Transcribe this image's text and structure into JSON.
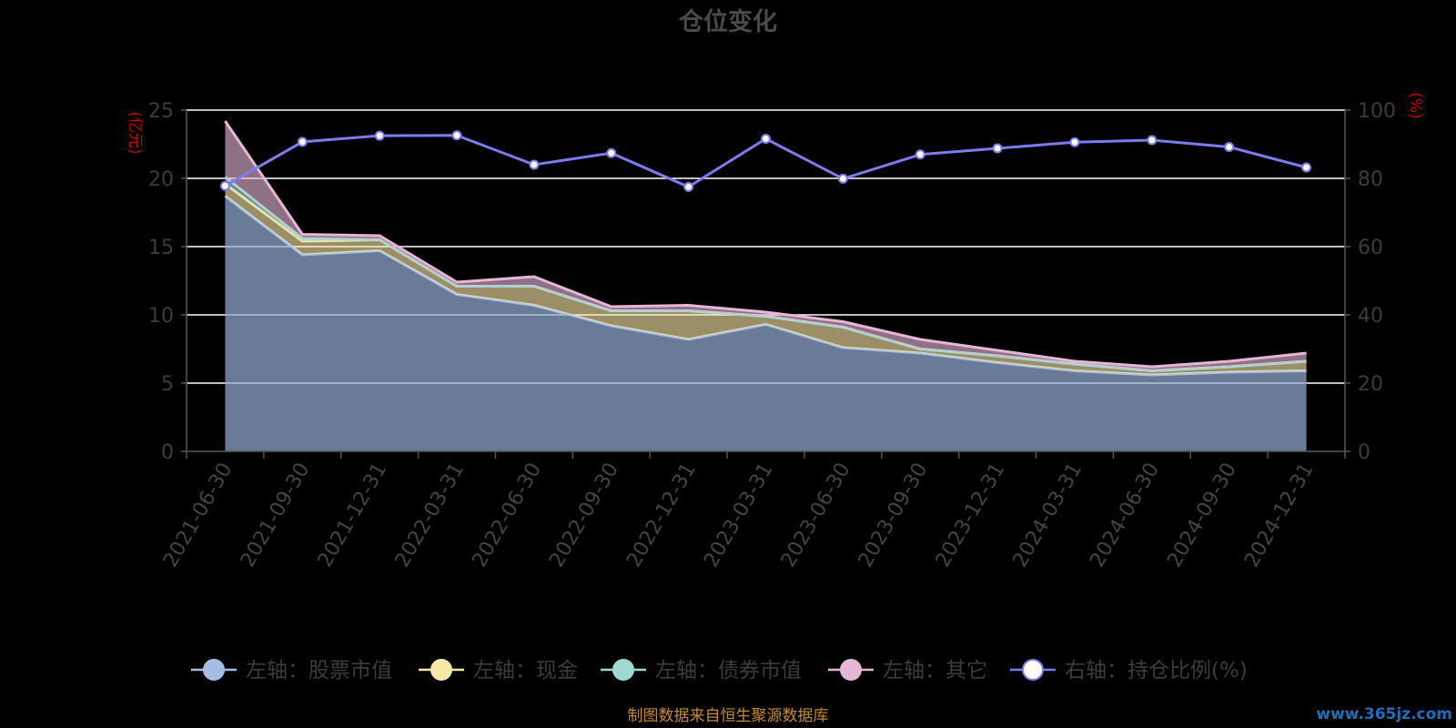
{
  "chart_data": {
    "type": "area",
    "title": "仓位变化",
    "left_unit": "(亿元)",
    "right_unit": "(%)",
    "categories": [
      "2021-06-30",
      "2021-09-30",
      "2021-12-31",
      "2022-03-31",
      "2022-06-30",
      "2022-09-30",
      "2022-12-31",
      "2023-03-31",
      "2023-06-30",
      "2023-09-30",
      "2023-12-31",
      "2024-03-31",
      "2024-06-30",
      "2024-09-30",
      "2024-12-31"
    ],
    "left_ylim": [
      0,
      25
    ],
    "left_ticks": [
      "0",
      "5",
      "10",
      "15",
      "20",
      "25"
    ],
    "right_ylim": [
      0,
      100
    ],
    "right_ticks": [
      "0",
      "20",
      "40",
      "60",
      "80",
      "100"
    ],
    "grid": true,
    "legend_position": "bottom",
    "series": [
      {
        "name": "左轴：股票市值",
        "axis": "left",
        "stack": true,
        "color": "#a3bde3",
        "values": [
          18.7,
          14.4,
          14.7,
          11.5,
          10.7,
          9.2,
          8.2,
          9.3,
          7.6,
          7.2,
          6.5,
          5.9,
          5.6,
          5.8,
          5.9
        ]
      },
      {
        "name": "左轴：现金",
        "axis": "left",
        "stack": true,
        "color": "#f8e6a6",
        "values": [
          0.9,
          1.0,
          0.8,
          0.6,
          1.4,
          1.1,
          2.1,
          0.6,
          1.5,
          0.3,
          0.5,
          0.5,
          0.3,
          0.4,
          0.7
        ]
      },
      {
        "name": "左轴：债券市值",
        "axis": "left",
        "stack": true,
        "color": "#9fdad2",
        "values": [
          0.5,
          0.2,
          0.0,
          0.0,
          0.0,
          0.0,
          0.0,
          0.0,
          0.0,
          0.0,
          0.0,
          0.0,
          0.0,
          0.0,
          0.0
        ]
      },
      {
        "name": "左轴：其它",
        "axis": "left",
        "stack": true,
        "color": "#e6b6d6",
        "values": [
          4.1,
          0.3,
          0.3,
          0.3,
          0.7,
          0.3,
          0.4,
          0.3,
          0.4,
          0.7,
          0.4,
          0.2,
          0.3,
          0.4,
          0.6
        ]
      },
      {
        "name": "右轴：持仓比例(%)",
        "axis": "right",
        "stack": false,
        "color": "#7b7cf0",
        "values": [
          77.8,
          90.7,
          92.5,
          92.6,
          84.0,
          87.4,
          77.5,
          91.6,
          79.9,
          87.0,
          88.8,
          90.6,
          91.2,
          89.2,
          83.2
        ]
      }
    ],
    "source": "制图数据来自恒生聚源数据库",
    "watermark": "www.365jz.com"
  }
}
